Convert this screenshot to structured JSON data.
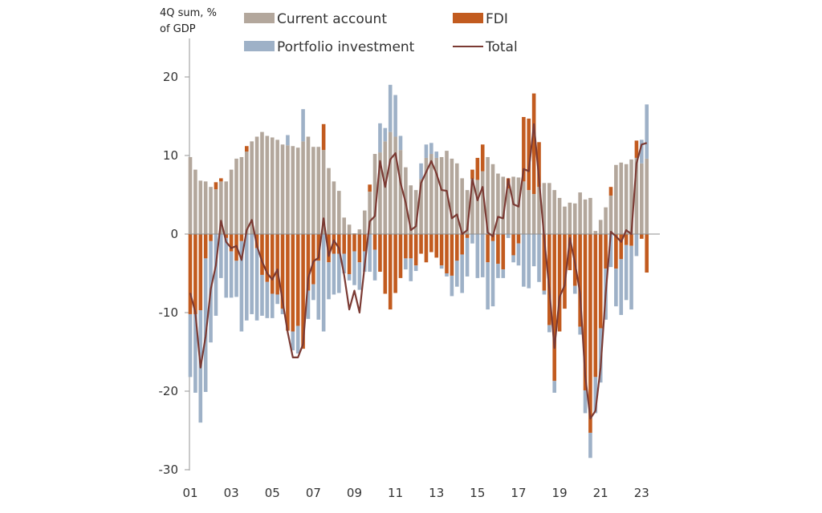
{
  "chart_data": {
    "type": "bar",
    "stacked": true,
    "ylabel_line1": "4Q sum, %",
    "ylabel_line2": "of GDP",
    "ylim": [
      -30,
      25
    ],
    "yticks": [
      20,
      10,
      0,
      -10,
      -20,
      -30
    ],
    "x_start": "2001Q1",
    "x_end": "2023Q2",
    "xtick_labels": [
      "01",
      "03",
      "05",
      "07",
      "09",
      "11",
      "13",
      "15",
      "17",
      "19",
      "21",
      "23"
    ],
    "grid": false,
    "legend_placement": "top",
    "colors": {
      "current_account": "#b3a79c",
      "fdi": "#c25b1f",
      "portfolio": "#9eb1c7",
      "total": "#7b3a33",
      "axis": "#a6a6a6"
    },
    "series": [
      {
        "key": "current_account",
        "name": "Current account",
        "values": [
          9.8,
          8.2,
          6.8,
          6.7,
          6.0,
          5.7,
          6.7,
          6.7,
          8.2,
          9.6,
          9.8,
          10.5,
          11.8,
          12.4,
          13.0,
          12.5,
          12.3,
          12.0,
          11.4,
          11.3,
          11.2,
          11.0,
          11.8,
          12.4,
          11.1,
          11.1,
          10.7,
          8.4,
          6.7,
          5.5,
          2.1,
          1.2,
          0.1,
          0.6,
          3.0,
          5.4,
          10.2,
          10.4,
          11.8,
          13.0,
          12.4,
          10.7,
          8.5,
          6.2,
          5.6,
          7.0,
          9.7,
          10.2,
          9.7,
          9.8,
          10.6,
          9.6,
          9.0,
          7.1,
          5.6,
          7.0,
          6.9,
          8.0,
          9.8,
          8.9,
          7.7,
          7.3,
          5.8,
          7.3,
          7.2,
          6.7,
          5.6,
          5.1,
          6.0,
          6.5,
          6.5,
          5.6,
          4.6,
          3.5,
          4.0,
          3.9,
          5.3,
          4.4,
          4.6,
          0.4,
          1.8,
          3.4,
          4.9,
          8.8,
          9.1,
          8.9,
          9.5,
          9.7,
          9.0,
          9.6
        ]
      },
      {
        "key": "fdi",
        "name": "FDI",
        "values": [
          -10.2,
          -10.2,
          -9.7,
          -3.1,
          -0.9,
          0.9,
          0.4,
          -0.5,
          -2.2,
          -3.4,
          -0.9,
          0.7,
          0,
          -1.8,
          -5.2,
          -6.1,
          -7.6,
          -7.7,
          -9.5,
          -12.3,
          -12.4,
          -11.7,
          -14.6,
          -7.2,
          -6.4,
          -3.4,
          3.3,
          -3.6,
          -2.5,
          -2.5,
          -2.5,
          -5.1,
          -2.2,
          -3.6,
          -2.2,
          0.9,
          -2.0,
          -4.8,
          -7.6,
          -9.6,
          -7.5,
          -5.6,
          -3.1,
          -3.1,
          -4.0,
          -2.5,
          -3.6,
          -2.3,
          -3.0,
          -4.0,
          -5.0,
          -5.3,
          -3.4,
          -2.6,
          -0.5,
          1.2,
          2.8,
          3.4,
          -3.6,
          -0.9,
          -3.8,
          -4.5,
          1.3,
          -2.7,
          -1.2,
          8.2,
          9.1,
          12.8,
          5.7,
          -7.2,
          -11.6,
          -18.7,
          -12.4,
          -9.5,
          -4.6,
          -6.6,
          -11.8,
          -19.9,
          -25.3,
          -18.2,
          -12.0,
          -4.4,
          1.1,
          -4.4,
          -3.2,
          -1.4,
          -1.5,
          2.2,
          -0.6,
          -4.9
        ]
      },
      {
        "key": "portfolio",
        "name": "Portfolio investment",
        "values": [
          -8.0,
          -10.0,
          -14.3,
          -17.0,
          -12.9,
          -10.4,
          -5.6,
          -7.6,
          -5.9,
          -4.6,
          -11.5,
          -11.0,
          -10.2,
          -9.2,
          -5.2,
          -4.6,
          -3.1,
          -1.2,
          -0.7,
          1.3,
          -2.4,
          -3.5,
          4.1,
          -3.6,
          -2.0,
          -7.5,
          -12.4,
          -4.7,
          -5.2,
          -5.0,
          -2.5,
          -0.8,
          -4.3,
          -3.5,
          -2.6,
          -4.8,
          -3.9,
          3.7,
          1.7,
          6.0,
          5.3,
          1.8,
          -1.4,
          -2.9,
          -0.7,
          2.0,
          1.7,
          1.4,
          0.8,
          -0.4,
          -0.4,
          -2.6,
          -3.3,
          -4.9,
          -4.9,
          -1.2,
          -5.6,
          -5.5,
          -6.0,
          -8.3,
          -1.8,
          -1.1,
          -0.5,
          -0.9,
          -2.8,
          -6.7,
          -6.9,
          -4.1,
          -6.1,
          -0.5,
          -0.9,
          -1.5,
          0,
          0,
          0,
          -1.0,
          -1.0,
          -2.9,
          -3.2,
          -4.6,
          -6.9,
          -6.5,
          -4.2,
          -4.8,
          -7.1,
          -7.0,
          -8.1,
          -2.8,
          3.0,
          6.9
        ]
      },
      {
        "key": "total",
        "name": "Total",
        "kind": "line",
        "values": [
          -7.5,
          -10.0,
          -17.0,
          -13.0,
          -7.0,
          -4.0,
          1.7,
          -1.0,
          -1.8,
          -1.5,
          -3.3,
          0.5,
          1.8,
          -1.5,
          -3.5,
          -5.0,
          -5.8,
          -4.5,
          -8.5,
          -12.5,
          -15.7,
          -15.7,
          -14.0,
          -5.6,
          -3.5,
          -3.0,
          2.0,
          -2.8,
          -0.8,
          -1.8,
          -5.2,
          -9.6,
          -7.2,
          -10.0,
          -4.0,
          1.6,
          2.3,
          9.3,
          6.0,
          9.5,
          10.3,
          6.5,
          4.0,
          0.5,
          1.0,
          6.5,
          7.9,
          9.3,
          7.7,
          5.6,
          5.5,
          2.0,
          2.5,
          0.0,
          0.5,
          7.0,
          4.3,
          6.0,
          0.2,
          -0.3,
          2.2,
          2.0,
          7.0,
          3.8,
          3.5,
          8.3,
          8.0,
          14.0,
          7.0,
          -0.5,
          -7.0,
          -14.5,
          -8.0,
          -6.5,
          -0.5,
          -3.7,
          -7.5,
          -18.0,
          -23.5,
          -22.5,
          -17.0,
          -7.5,
          0.3,
          -0.3,
          -1.0,
          0.5,
          0.0,
          9.0,
          11.4,
          11.6
        ]
      }
    ]
  }
}
